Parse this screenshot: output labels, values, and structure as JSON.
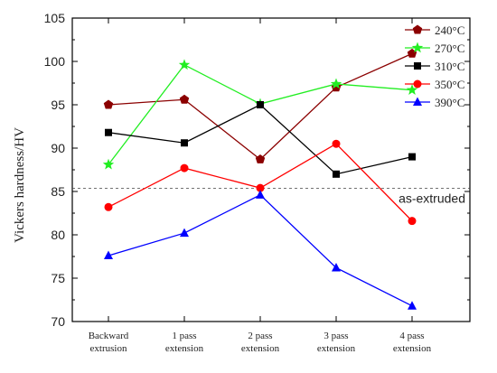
{
  "chart_data": {
    "type": "line",
    "categories": [
      [
        "Backward",
        "extrusion"
      ],
      [
        "1 pass",
        "extension"
      ],
      [
        "2 pass",
        "extension"
      ],
      [
        "3 pass",
        "extension"
      ],
      [
        "4 pass",
        "extension"
      ]
    ],
    "ylabel": "Vickers hardness/HV",
    "xlabel": "",
    "title": "",
    "ylim": [
      70,
      105
    ],
    "yticks": [
      70,
      75,
      80,
      85,
      90,
      95,
      100,
      105
    ],
    "legend_position": "top-right",
    "series": [
      {
        "name": "240",
        "color": "#8B0000",
        "marker": "pentagon",
        "values": [
          95.0,
          95.6,
          88.7,
          97.0,
          100.9
        ]
      },
      {
        "name": "270",
        "color": "#22EE22",
        "marker": "star",
        "values": [
          88.1,
          99.6,
          95.1,
          97.4,
          96.7
        ]
      },
      {
        "name": "310",
        "color": "#000000",
        "marker": "square",
        "values": [
          91.8,
          90.6,
          95.0,
          87.0,
          89.0
        ]
      },
      {
        "name": "350",
        "color": "#FF0000",
        "marker": "circle",
        "values": [
          83.2,
          87.7,
          85.4,
          90.5,
          81.6
        ]
      },
      {
        "name": "390",
        "color": "#0000FF",
        "marker": "triangle",
        "values": [
          77.6,
          80.2,
          84.6,
          76.2,
          71.8
        ]
      }
    ],
    "legend_unit": "°C",
    "reference_line": {
      "value": 85.35,
      "label": "as-extruded",
      "style": "dashed"
    }
  }
}
